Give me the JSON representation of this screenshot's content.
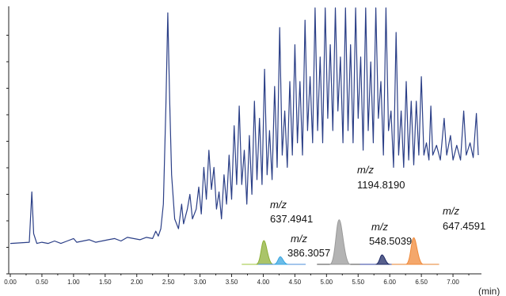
{
  "chart_data": {
    "type": "line",
    "title": "",
    "xlabel": "",
    "ylabel": "",
    "x_unit": "(min)",
    "xlim": [
      0,
      7.4
    ],
    "ylim": [
      0,
      1
    ],
    "grid": false,
    "legend": "none",
    "x_ticks": [
      "0.00",
      "0.50",
      "1.00",
      "1.50",
      "2.00",
      "2.50",
      "3.00",
      "3.50",
      "4.00",
      "4.50",
      "5.00",
      "5.50",
      "6.00",
      "6.50",
      "7.00"
    ],
    "series": [
      {
        "color": "#2b3f87",
        "points": [
          [
            0.0,
            0.04
          ],
          [
            0.3,
            0.045
          ],
          [
            0.34,
            0.25
          ],
          [
            0.37,
            0.08
          ],
          [
            0.42,
            0.04
          ],
          [
            0.5,
            0.045
          ],
          [
            0.6,
            0.04
          ],
          [
            0.7,
            0.05
          ],
          [
            0.8,
            0.04
          ],
          [
            0.9,
            0.05
          ],
          [
            1.0,
            0.06
          ],
          [
            1.05,
            0.045
          ],
          [
            1.15,
            0.05
          ],
          [
            1.25,
            0.055
          ],
          [
            1.35,
            0.045
          ],
          [
            1.45,
            0.05
          ],
          [
            1.55,
            0.055
          ],
          [
            1.65,
            0.06
          ],
          [
            1.75,
            0.05
          ],
          [
            1.85,
            0.065
          ],
          [
            1.95,
            0.06
          ],
          [
            2.05,
            0.055
          ],
          [
            2.15,
            0.065
          ],
          [
            2.25,
            0.06
          ],
          [
            2.3,
            0.09
          ],
          [
            2.34,
            0.07
          ],
          [
            2.38,
            0.1
          ],
          [
            2.42,
            0.2
          ],
          [
            2.46,
            0.6
          ],
          [
            2.49,
            0.98
          ],
          [
            2.52,
            0.62
          ],
          [
            2.55,
            0.32
          ],
          [
            2.6,
            0.14
          ],
          [
            2.66,
            0.1
          ],
          [
            2.71,
            0.2
          ],
          [
            2.74,
            0.12
          ],
          [
            2.8,
            0.18
          ],
          [
            2.84,
            0.24
          ],
          [
            2.88,
            0.14
          ],
          [
            2.94,
            0.18
          ],
          [
            2.98,
            0.27
          ],
          [
            3.02,
            0.16
          ],
          [
            3.06,
            0.35
          ],
          [
            3.1,
            0.22
          ],
          [
            3.14,
            0.42
          ],
          [
            3.18,
            0.26
          ],
          [
            3.22,
            0.35
          ],
          [
            3.26,
            0.18
          ],
          [
            3.3,
            0.25
          ],
          [
            3.34,
            0.14
          ],
          [
            3.38,
            0.32
          ],
          [
            3.42,
            0.2
          ],
          [
            3.46,
            0.4
          ],
          [
            3.5,
            0.22
          ],
          [
            3.54,
            0.52
          ],
          [
            3.58,
            0.28
          ],
          [
            3.62,
            0.6
          ],
          [
            3.66,
            0.28
          ],
          [
            3.7,
            0.42
          ],
          [
            3.74,
            0.2
          ],
          [
            3.78,
            0.48
          ],
          [
            3.82,
            0.24
          ],
          [
            3.86,
            0.62
          ],
          [
            3.9,
            0.3
          ],
          [
            3.94,
            0.55
          ],
          [
            3.98,
            0.28
          ],
          [
            4.02,
            0.75
          ],
          [
            4.06,
            0.32
          ],
          [
            4.1,
            0.5
          ],
          [
            4.14,
            0.3
          ],
          [
            4.18,
            0.68
          ],
          [
            4.22,
            0.35
          ],
          [
            4.26,
            0.92
          ],
          [
            4.3,
            0.4
          ],
          [
            4.34,
            0.58
          ],
          [
            4.38,
            0.35
          ],
          [
            4.42,
            0.7
          ],
          [
            4.46,
            0.4
          ],
          [
            4.5,
            0.85
          ],
          [
            4.54,
            0.45
          ],
          [
            4.58,
            0.7
          ],
          [
            4.62,
            0.4
          ],
          [
            4.66,
            0.95
          ],
          [
            4.7,
            0.5
          ],
          [
            4.74,
            0.72
          ],
          [
            4.78,
            0.45
          ],
          [
            4.82,
            1.0
          ],
          [
            4.86,
            0.5
          ],
          [
            4.9,
            0.8
          ],
          [
            4.94,
            0.45
          ],
          [
            4.98,
            1.0
          ],
          [
            5.02,
            0.55
          ],
          [
            5.06,
            0.85
          ],
          [
            5.1,
            0.5
          ],
          [
            5.14,
            1.0
          ],
          [
            5.18,
            0.58
          ],
          [
            5.22,
            0.8
          ],
          [
            5.26,
            0.45
          ],
          [
            5.3,
            1.0
          ],
          [
            5.34,
            0.5
          ],
          [
            5.38,
            0.85
          ],
          [
            5.42,
            0.45
          ],
          [
            5.46,
            1.0
          ],
          [
            5.5,
            0.55
          ],
          [
            5.54,
            0.8
          ],
          [
            5.58,
            0.42
          ],
          [
            5.62,
            1.0
          ],
          [
            5.66,
            0.5
          ],
          [
            5.7,
            0.78
          ],
          [
            5.74,
            0.45
          ],
          [
            5.78,
            1.0
          ],
          [
            5.82,
            0.55
          ],
          [
            5.86,
            0.7
          ],
          [
            5.9,
            0.4
          ],
          [
            5.94,
            1.0
          ],
          [
            5.98,
            0.5
          ],
          [
            6.02,
            0.58
          ],
          [
            6.06,
            0.35
          ],
          [
            6.1,
            0.9
          ],
          [
            6.14,
            0.4
          ],
          [
            6.18,
            0.58
          ],
          [
            6.22,
            0.35
          ],
          [
            6.26,
            0.7
          ],
          [
            6.3,
            0.38
          ],
          [
            6.34,
            0.62
          ],
          [
            6.38,
            0.36
          ],
          [
            6.42,
            0.62
          ],
          [
            6.46,
            0.4
          ],
          [
            6.5,
            0.72
          ],
          [
            6.54,
            0.4
          ],
          [
            6.58,
            0.45
          ],
          [
            6.62,
            0.38
          ],
          [
            6.65,
            0.6
          ],
          [
            6.68,
            0.4
          ],
          [
            6.74,
            0.44
          ],
          [
            6.8,
            0.38
          ],
          [
            6.86,
            0.55
          ],
          [
            6.9,
            0.4
          ],
          [
            6.96,
            0.48
          ],
          [
            7.0,
            0.38
          ],
          [
            7.06,
            0.44
          ],
          [
            7.12,
            0.38
          ],
          [
            7.17,
            0.58
          ],
          [
            7.21,
            0.4
          ],
          [
            7.27,
            0.45
          ],
          [
            7.32,
            0.39
          ],
          [
            7.37,
            0.57
          ],
          [
            7.4,
            0.4
          ]
        ]
      }
    ],
    "annotations": [
      {
        "mz_label": "m/z",
        "value": "637.4941",
        "peak_time": 4.01,
        "color": "#8db037",
        "peak_height": 0.25
      },
      {
        "mz_label": "m/z",
        "value": "386.3057",
        "peak_time": 4.27,
        "color": "#39a6e0",
        "peak_height": 0.08
      },
      {
        "mz_label": "m/z",
        "value": "1194.8190",
        "peak_time": 5.2,
        "color": "#9a9a9a",
        "peak_height": 0.47
      },
      {
        "mz_label": "m/z",
        "value": "548.5039",
        "peak_time": 5.88,
        "color": "#1f2a66",
        "peak_height": 0.1
      },
      {
        "mz_label": "m/z",
        "value": "647.4591",
        "peak_time": 6.38,
        "color": "#f08a3a",
        "peak_height": 0.28
      }
    ],
    "eic_baseline_colors": [
      "#9cc63a",
      "#4a8ed8",
      "#444444",
      "#2c3f9f",
      "#e7812b"
    ]
  }
}
